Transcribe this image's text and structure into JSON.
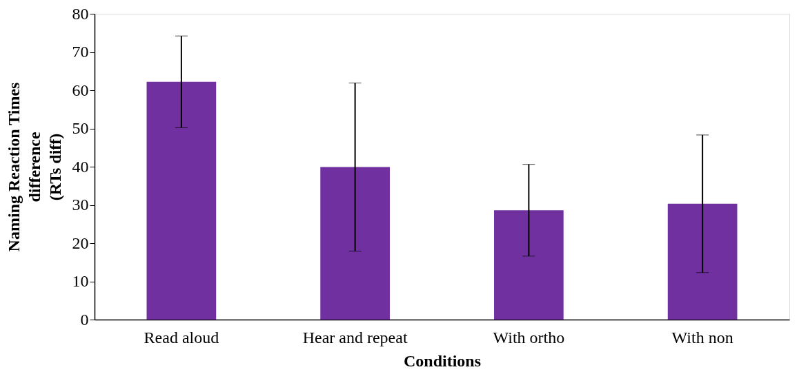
{
  "chart_data": {
    "type": "bar",
    "xlabel": "Conditions",
    "ylabel": "Naming Reaction Times\ndifference\n(RTs diff)",
    "categories": [
      "Read aloud",
      "Hear and repeat",
      "With ortho",
      "With non"
    ],
    "values": [
      62.2,
      39.9,
      28.6,
      30.3
    ],
    "errors": [
      12,
      22,
      12,
      18
    ],
    "color": "#7030a0",
    "ylim": [
      0,
      80
    ],
    "yticks": [
      0,
      10,
      20,
      30,
      40,
      50,
      60,
      70,
      80
    ],
    "grid": false
  }
}
